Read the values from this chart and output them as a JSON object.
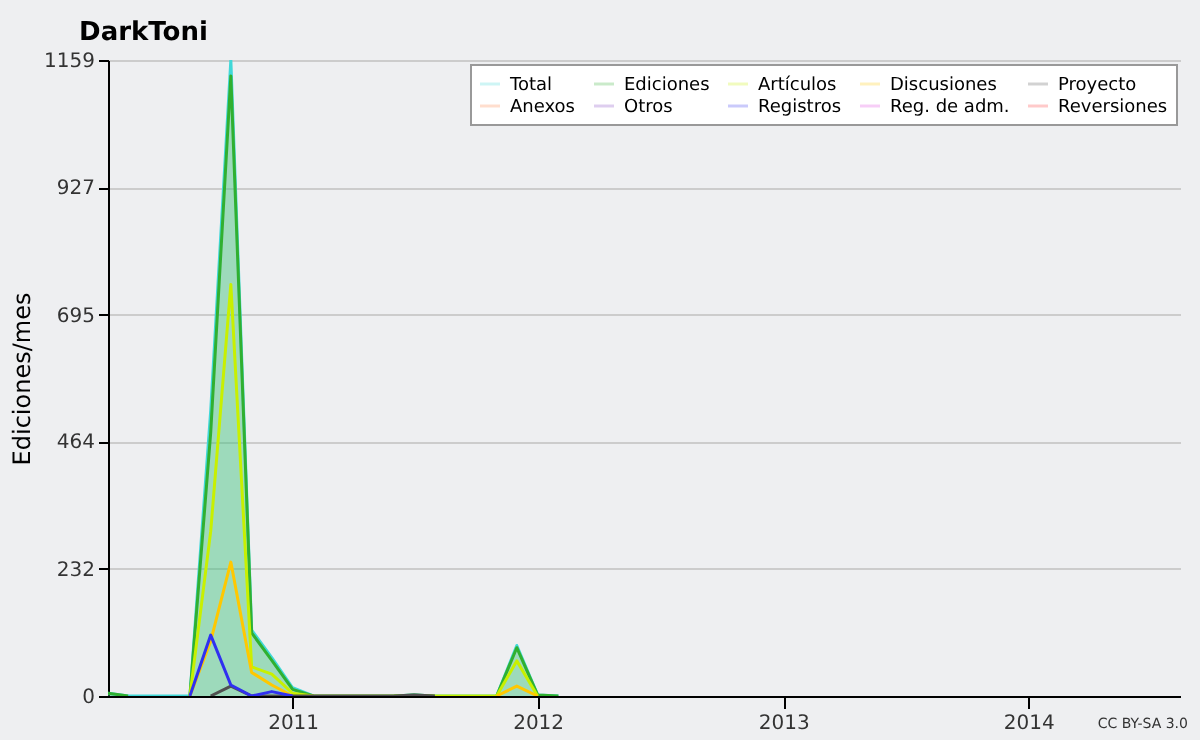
{
  "chart_data": {
    "type": "line",
    "title": "DarkToni",
    "ylabel": "Ediciones/mes",
    "x": [
      "2010-04",
      "2010-05",
      "2010-06",
      "2010-07",
      "2010-08",
      "2010-09",
      "2010-10",
      "2010-11",
      "2010-12",
      "2011-01",
      "2011-02",
      "2011-03",
      "2011-04",
      "2011-05",
      "2011-06",
      "2011-07",
      "2011-08",
      "2011-09",
      "2011-10",
      "2011-11",
      "2011-12",
      "2012-01",
      "2012-02"
    ],
    "series": [
      {
        "name": "Total",
        "color": "#40d8d8",
        "type": "area",
        "values": [
          5,
          0,
          0,
          0,
          0,
          520,
          1159,
          120,
          70,
          15,
          0,
          0,
          0,
          0,
          0,
          2,
          0,
          0,
          0,
          0,
          92,
          2,
          0
        ]
      },
      {
        "name": "Ediciones",
        "color": "#30b030",
        "type": "area",
        "values": [
          5,
          0,
          null,
          null,
          0,
          480,
          1130,
          115,
          65,
          12,
          0,
          null,
          null,
          null,
          0,
          2,
          0,
          null,
          null,
          0,
          88,
          2,
          0
        ]
      },
      {
        "name": "Artículos",
        "color": "#c8f000",
        "values": [
          null,
          null,
          null,
          null,
          0,
          300,
          750,
          53,
          40,
          5,
          0,
          0,
          0,
          0,
          0,
          0,
          0,
          0,
          0,
          0,
          64,
          0,
          null
        ]
      },
      {
        "name": "Discusiones",
        "color": "#ffc800",
        "values": [
          null,
          null,
          null,
          null,
          0,
          100,
          244,
          43,
          20,
          0,
          null,
          null,
          null,
          null,
          null,
          null,
          null,
          null,
          null,
          0,
          18,
          0,
          null
        ]
      },
      {
        "name": "Proyecto",
        "color": "#505050",
        "values": [
          null,
          null,
          null,
          null,
          null,
          0,
          18,
          0,
          0,
          0,
          0,
          0,
          0,
          0,
          0,
          2,
          0,
          null,
          null,
          null,
          null,
          null,
          null
        ]
      },
      {
        "name": "Anexos",
        "color": "#ff8040",
        "values": [
          null,
          null,
          null,
          null,
          null,
          null,
          null,
          null,
          null,
          null,
          null,
          null,
          null,
          null,
          null,
          null,
          null,
          null,
          null,
          null,
          null,
          null,
          null
        ]
      },
      {
        "name": "Otros",
        "color": "#8040c0",
        "values": [
          null,
          null,
          null,
          null,
          null,
          null,
          null,
          null,
          null,
          null,
          null,
          null,
          null,
          null,
          null,
          null,
          null,
          null,
          null,
          null,
          null,
          null,
          null
        ]
      },
      {
        "name": "Registros",
        "color": "#3030f0",
        "values": [
          null,
          null,
          null,
          null,
          0,
          111,
          20,
          0,
          8,
          0,
          null,
          null,
          null,
          null,
          null,
          null,
          null,
          null,
          null,
          null,
          null,
          null,
          null
        ]
      },
      {
        "name": "Reg. de adm.",
        "color": "#e040e0",
        "values": [
          null,
          null,
          null,
          null,
          null,
          null,
          null,
          null,
          null,
          null,
          null,
          null,
          null,
          null,
          null,
          null,
          null,
          null,
          null,
          null,
          null,
          null,
          null
        ]
      },
      {
        "name": "Reversiones",
        "color": "#ff3030",
        "values": [
          null,
          null,
          null,
          null,
          null,
          null,
          null,
          null,
          null,
          null,
          null,
          null,
          null,
          null,
          null,
          null,
          null,
          null,
          null,
          null,
          null,
          null,
          null
        ]
      }
    ],
    "xlim": [
      "2010-04-01",
      "2014-08-15"
    ],
    "xticks": [
      "2011",
      "2012",
      "2013",
      "2014"
    ],
    "ylim": [
      0,
      1159
    ],
    "yticks": [
      0,
      232,
      464,
      695,
      927,
      1159
    ],
    "grid": "y",
    "legend": "top right",
    "annotations": [
      "CC BY-SA 3.0"
    ]
  }
}
